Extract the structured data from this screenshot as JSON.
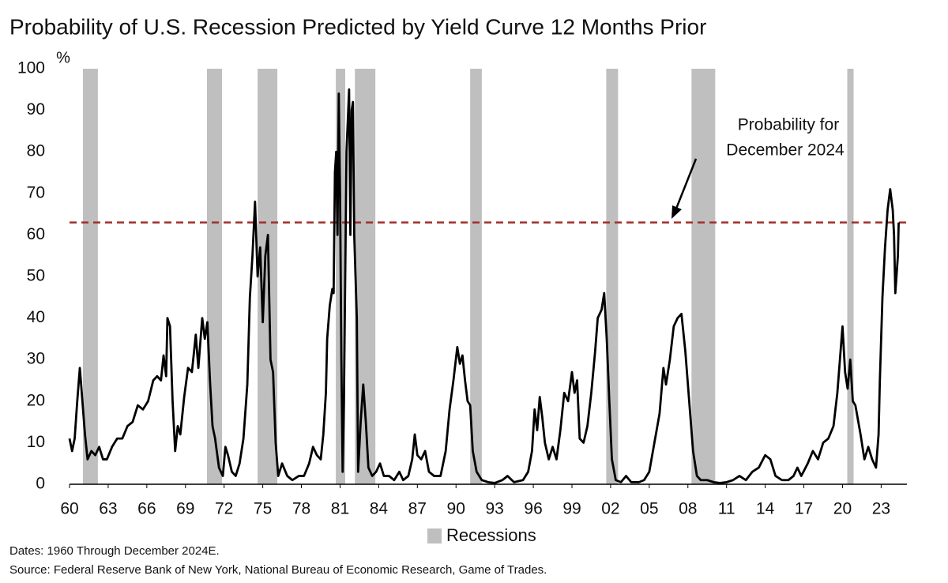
{
  "chart_data": {
    "type": "line",
    "title": "Probability of U.S. Recession Predicted by Yield Curve 12 Months Prior",
    "y_label": "%",
    "annotation_lines": [
      "Probability for",
      "December 2024"
    ],
    "notes": [
      "Dates: 1960 Through December 2024E.",
      "Source: Federal Reserve Bank of New York, National Bureau of Economic Research, Game of Trades."
    ],
    "reference_line": {
      "value": 63,
      "color": "#a0302a"
    },
    "recessions": {
      "name": "Recessions",
      "color": "#bfbfbf",
      "periods": [
        [
          1961.04,
          1962.2
        ],
        [
          1970.67,
          1971.84
        ],
        [
          1974.6,
          1976.13
        ],
        [
          1980.67,
          1981.4
        ],
        [
          1982.15,
          1983.74
        ],
        [
          1991.1,
          1992.0
        ],
        [
          2001.66,
          2002.58
        ],
        [
          2008.28,
          2010.12
        ],
        [
          2020.37,
          2020.86
        ]
      ]
    },
    "color": "#000000",
    "x": [
      1960.0,
      1960.2,
      1960.4,
      1960.6,
      1960.8,
      1961.0,
      1961.2,
      1961.4,
      1961.7,
      1962.0,
      1962.3,
      1962.6,
      1962.9,
      1963.3,
      1963.7,
      1964.1,
      1964.5,
      1964.9,
      1965.3,
      1965.7,
      1966.1,
      1966.5,
      1966.8,
      1967.1,
      1967.3,
      1967.5,
      1967.6,
      1967.8,
      1968.0,
      1968.2,
      1968.4,
      1968.6,
      1968.9,
      1969.2,
      1969.5,
      1969.8,
      1970.0,
      1970.3,
      1970.5,
      1970.7,
      1970.9,
      1971.1,
      1971.3,
      1971.6,
      1971.9,
      1972.1,
      1972.3,
      1972.6,
      1972.9,
      1973.2,
      1973.5,
      1973.8,
      1974.0,
      1974.2,
      1974.4,
      1974.6,
      1974.8,
      1975.0,
      1975.2,
      1975.4,
      1975.6,
      1975.8,
      1976.0,
      1976.2,
      1976.5,
      1976.9,
      1977.3,
      1977.8,
      1978.2,
      1978.6,
      1978.9,
      1979.2,
      1979.5,
      1979.7,
      1979.9,
      1980.0,
      1980.2,
      1980.4,
      1980.5,
      1980.6,
      1980.7,
      1980.8,
      1980.9,
      1981.0,
      1981.1,
      1981.2,
      1981.3,
      1981.5,
      1981.7,
      1981.8,
      1981.9,
      1982.0,
      1982.1,
      1982.3,
      1982.4,
      1982.6,
      1982.8,
      1983.0,
      1983.2,
      1983.5,
      1983.8,
      1984.1,
      1984.4,
      1984.8,
      1985.2,
      1985.6,
      1985.9,
      1986.3,
      1986.6,
      1986.8,
      1987.0,
      1987.3,
      1987.6,
      1987.9,
      1988.3,
      1988.8,
      1989.2,
      1989.5,
      1989.8,
      1990.1,
      1990.3,
      1990.5,
      1990.7,
      1990.9,
      1991.1,
      1991.3,
      1991.6,
      1992.0,
      1992.5,
      1993.0,
      1993.6,
      1994.0,
      1994.5,
      1995.2,
      1995.6,
      1995.9,
      1996.1,
      1996.3,
      1996.5,
      1996.7,
      1996.9,
      1997.2,
      1997.5,
      1997.8,
      1998.1,
      1998.4,
      1998.7,
      1999.0,
      1999.2,
      1999.4,
      1999.6,
      1999.9,
      2000.2,
      2000.5,
      2000.8,
      2001.0,
      2001.3,
      2001.5,
      2001.7,
      2001.9,
      2002.1,
      2002.4,
      2002.8,
      2003.2,
      2003.6,
      2004.2,
      2004.6,
      2005.0,
      2005.4,
      2005.8,
      2006.1,
      2006.3,
      2006.6,
      2006.9,
      2007.2,
      2007.5,
      2007.8,
      2008.1,
      2008.4,
      2008.7,
      2009.0,
      2009.5,
      2010.0,
      2010.5,
      2011.0,
      2011.5,
      2012.0,
      2012.5,
      2013.0,
      2013.5,
      2014.0,
      2014.4,
      2014.8,
      2015.3,
      2015.8,
      2016.2,
      2016.5,
      2016.8,
      2017.3,
      2017.7,
      2018.1,
      2018.5,
      2018.9,
      2019.3,
      2019.6,
      2019.8,
      2020.0,
      2020.2,
      2020.4,
      2020.6,
      2020.8,
      2021.0,
      2021.4,
      2021.7,
      2022.0,
      2022.3,
      2022.6,
      2022.8,
      2022.9,
      2023.1,
      2023.3,
      2023.5,
      2023.7,
      2023.9,
      2024.0,
      2024.1,
      2024.3,
      2024.36
    ],
    "values": [
      11,
      8,
      11,
      20,
      28,
      20,
      12,
      6,
      8,
      7,
      9,
      6,
      6,
      9,
      11,
      11,
      14,
      15,
      19,
      18,
      20,
      25,
      26,
      25,
      31,
      26,
      40,
      38,
      20,
      8,
      14,
      12,
      21,
      28,
      27,
      36,
      28,
      40,
      35,
      39,
      25,
      14,
      11,
      4,
      2,
      9,
      7,
      3,
      2,
      5,
      11,
      24,
      45,
      55,
      68,
      50,
      57,
      39,
      55,
      60,
      30,
      27,
      10,
      2,
      5,
      2,
      1,
      2,
      2,
      5,
      9,
      7,
      6,
      12,
      22,
      35,
      43,
      47,
      46,
      75,
      80,
      60,
      94,
      70,
      30,
      3,
      20,
      80,
      95,
      60,
      90,
      92,
      60,
      40,
      3,
      15,
      24,
      15,
      4,
      2,
      3,
      5,
      2,
      2,
      1,
      3,
      1,
      2,
      6,
      12,
      7,
      6,
      8,
      3,
      2,
      2,
      8,
      18,
      25,
      33,
      29,
      31,
      25,
      20,
      19,
      8,
      3,
      1,
      0.5,
      0.3,
      1,
      2,
      0.5,
      1,
      3,
      8,
      18,
      13,
      21,
      16,
      10,
      6,
      9,
      6,
      13,
      22,
      20,
      27,
      22,
      25,
      11,
      10,
      14,
      22,
      32,
      40,
      42,
      46,
      35,
      20,
      6,
      1,
      0.5,
      2,
      0.5,
      0.5,
      1,
      3,
      10,
      17,
      28,
      24,
      30,
      38,
      40,
      41,
      32,
      20,
      8,
      2,
      1,
      1,
      0.5,
      0.3,
      0.5,
      1,
      2,
      1,
      3,
      4,
      7,
      6,
      2,
      1,
      1,
      2,
      4,
      2,
      5,
      8,
      6,
      10,
      11,
      14,
      22,
      30,
      38,
      27,
      23,
      30,
      20,
      19,
      12,
      6,
      9,
      6,
      4,
      12,
      25,
      45,
      57,
      66,
      71,
      66,
      60,
      46,
      55,
      63
    ],
    "xlim": [
      1960,
      2025
    ],
    "ylim": [
      0,
      100
    ],
    "yticks": [
      0,
      10,
      20,
      30,
      40,
      50,
      60,
      70,
      80,
      90,
      100
    ],
    "xticks": [
      {
        "value": 1960,
        "label": "60"
      },
      {
        "value": 1963,
        "label": "63"
      },
      {
        "value": 1966,
        "label": "66"
      },
      {
        "value": 1969,
        "label": "69"
      },
      {
        "value": 1972,
        "label": "72"
      },
      {
        "value": 1975,
        "label": "75"
      },
      {
        "value": 1978,
        "label": "78"
      },
      {
        "value": 1981,
        "label": "81"
      },
      {
        "value": 1984,
        "label": "84"
      },
      {
        "value": 1987,
        "label": "87"
      },
      {
        "value": 1990,
        "label": "90"
      },
      {
        "value": 1993,
        "label": "93"
      },
      {
        "value": 1996,
        "label": "96"
      },
      {
        "value": 1999,
        "label": "99"
      },
      {
        "value": 2002,
        "label": "02"
      },
      {
        "value": 2005,
        "label": "05"
      },
      {
        "value": 2008,
        "label": "08"
      },
      {
        "value": 2011,
        "label": "11"
      },
      {
        "value": 2014,
        "label": "14"
      },
      {
        "value": 2017,
        "label": "17"
      },
      {
        "value": 2020,
        "label": "20"
      },
      {
        "value": 2023,
        "label": "23"
      }
    ]
  }
}
